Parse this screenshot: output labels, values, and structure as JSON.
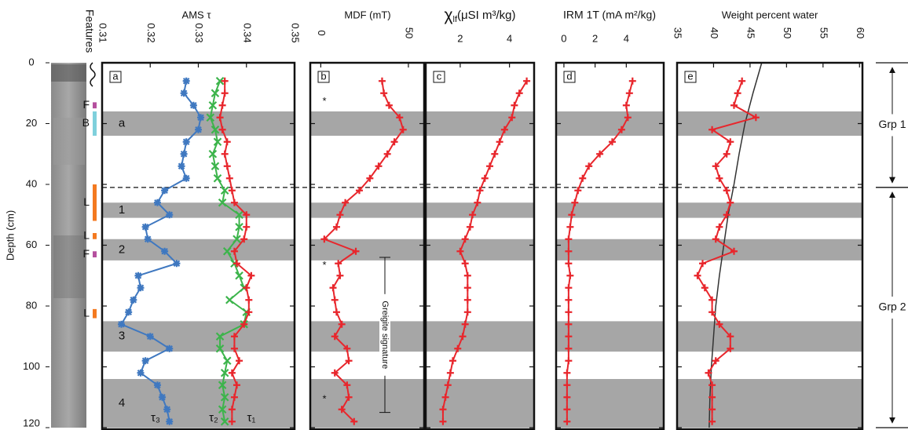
{
  "chart_data": [
    {
      "type": "line",
      "title": "AMS τ",
      "panel_label": "a",
      "ylabel": "Depth (cm)",
      "ylim": [
        0,
        120
      ],
      "yticks": [
        0,
        20,
        40,
        60,
        80,
        100,
        120
      ],
      "xlim": [
        0.31,
        0.35
      ],
      "xticks": [
        0.31,
        0.32,
        0.33,
        0.34,
        0.35
      ],
      "y": [
        6,
        10,
        14,
        18,
        22,
        26,
        30,
        34,
        38,
        42,
        46,
        50,
        54,
        58,
        62,
        66,
        70,
        74,
        78,
        82,
        86,
        90,
        94,
        98,
        102,
        106,
        110,
        114,
        118
      ],
      "series": [
        {
          "name": "τ₃",
          "color": "#3f78c0",
          "marker": "star",
          "values": [
            0.3275,
            0.327,
            0.329,
            0.3305,
            0.33,
            0.3275,
            0.327,
            0.3265,
            0.3275,
            0.323,
            0.3215,
            0.324,
            0.319,
            0.3195,
            0.323,
            0.3255,
            0.3175,
            0.318,
            0.3165,
            0.3155,
            0.314,
            0.32,
            0.324,
            0.319,
            0.318,
            0.3215,
            0.3225,
            0.3235,
            0.324
          ]
        },
        {
          "name": "τ₂",
          "color": "#3cb44b",
          "marker": "x",
          "values": [
            0.3345,
            0.3335,
            0.333,
            0.3325,
            0.3335,
            0.334,
            0.333,
            0.3335,
            0.334,
            0.3355,
            0.335,
            0.3385,
            0.3385,
            0.338,
            0.336,
            0.3375,
            0.3385,
            0.3395,
            0.3365,
            0.34,
            0.3395,
            0.3345,
            0.3345,
            0.336,
            0.3355,
            0.335,
            0.3355,
            0.335,
            0.3355
          ]
        },
        {
          "name": "τ₁",
          "color": "#e8262c",
          "marker": "plus",
          "values": [
            0.3355,
            0.3355,
            0.335,
            0.3345,
            0.335,
            0.336,
            0.3355,
            0.336,
            0.3365,
            0.337,
            0.3375,
            0.34,
            0.34,
            0.3395,
            0.3375,
            0.338,
            0.341,
            0.34,
            0.3405,
            0.3405,
            0.3395,
            0.3375,
            0.3375,
            0.3385,
            0.337,
            0.338,
            0.3375,
            0.337,
            0.337
          ]
        }
      ]
    },
    {
      "type": "line",
      "title": "MDF (mT)",
      "panel_label": "b",
      "xlim": [
        -6,
        59
      ],
      "xticks": [
        0,
        50
      ],
      "y": [
        6,
        10,
        14,
        18,
        22,
        26,
        30,
        34,
        38,
        42,
        46,
        50,
        54,
        58,
        62,
        66,
        70,
        74,
        78,
        82,
        86,
        90,
        94,
        98,
        102,
        106,
        110,
        114,
        118
      ],
      "series": [
        {
          "color": "#e8262c",
          "marker": "plus",
          "values": [
            35,
            36,
            39,
            45,
            47,
            42,
            38,
            33,
            28,
            22,
            14,
            11,
            9,
            2,
            20,
            10,
            11,
            7,
            8,
            9,
            12,
            8,
            15,
            16,
            8,
            15,
            16,
            12,
            19
          ]
        }
      ]
    },
    {
      "type": "line",
      "title": "χ",
      "title_sub": "lf",
      "title_unit": "(μSI m³/kg)",
      "panel_label": "c",
      "xlim": [
        0.6,
        5
      ],
      "xticks": [
        2,
        4
      ],
      "y": [
        6,
        10,
        14,
        18,
        22,
        26,
        30,
        34,
        38,
        42,
        46,
        50,
        54,
        58,
        62,
        66,
        70,
        74,
        78,
        82,
        86,
        90,
        94,
        98,
        102,
        106,
        110,
        114,
        118
      ],
      "series": [
        {
          "color": "#e8262c",
          "marker": "plus",
          "values": [
            4.7,
            4.4,
            4.2,
            4.1,
            3.8,
            3.6,
            3.4,
            3.2,
            3.0,
            2.8,
            2.7,
            2.5,
            2.4,
            2.2,
            2.0,
            2.2,
            2.3,
            2.3,
            2.3,
            2.3,
            2.2,
            2.1,
            1.9,
            1.7,
            1.6,
            1.5,
            1.4,
            1.3,
            1.3
          ]
        }
      ]
    },
    {
      "type": "line",
      "title": "IRM 1T (mA m²/kg)",
      "panel_label": "d",
      "xlim": [
        -0.5,
        6.4
      ],
      "xticks": [
        0,
        2,
        4
      ],
      "y": [
        6,
        10,
        14,
        18,
        22,
        26,
        30,
        34,
        38,
        42,
        46,
        50,
        54,
        58,
        62,
        66,
        70,
        74,
        78,
        82,
        86,
        90,
        94,
        98,
        102,
        106,
        110,
        114,
        118
      ],
      "series": [
        {
          "color": "#e8262c",
          "marker": "plus",
          "values": [
            4.4,
            4.2,
            4.0,
            4.1,
            3.7,
            3.1,
            2.3,
            1.6,
            1.2,
            0.9,
            0.7,
            0.5,
            0.4,
            0.3,
            0.3,
            0.3,
            0.4,
            0.3,
            0.3,
            0.3,
            0.3,
            0.3,
            0.3,
            0.3,
            0.2,
            0.2,
            0.2,
            0.2,
            0.2
          ]
        }
      ]
    },
    {
      "type": "line",
      "title": "Weight percent water",
      "panel_label": "e",
      "xlim": [
        35,
        60.4
      ],
      "xticks": [
        35,
        40,
        45,
        50,
        55,
        60
      ],
      "y": [
        6,
        10,
        14,
        18,
        22,
        26,
        30,
        34,
        38,
        42,
        46,
        50,
        54,
        58,
        62,
        66,
        70,
        74,
        78,
        82,
        86,
        90,
        94,
        98,
        102,
        106,
        110,
        114,
        118
      ],
      "series": [
        {
          "color": "#e8262c",
          "marker": "plus",
          "values": [
            43.9,
            43.3,
            42.8,
            45.8,
            39.8,
            42.3,
            41.8,
            40.3,
            40.8,
            41.8,
            42.3,
            41.8,
            40.8,
            40.3,
            42.8,
            38.5,
            37.8,
            38.8,
            39.8,
            39.8,
            40.8,
            42.3,
            42.3,
            40.3,
            39.3,
            39.8,
            39.8,
            39.8,
            39.8
          ]
        }
      ],
      "trend": {
        "color": "#333333",
        "y": [
          0,
          10,
          20,
          30,
          40,
          50,
          60,
          70,
          80,
          90,
          100,
          110,
          120
        ],
        "values": [
          46.6,
          45.4,
          44.3,
          43.5,
          42.8,
          42.0,
          41.4,
          40.8,
          40.3,
          40.0,
          39.7,
          39.5,
          39.4
        ]
      }
    }
  ],
  "zones": [
    {
      "label": "a",
      "depth": [
        16,
        24
      ]
    },
    {
      "label": "1",
      "depth": [
        46,
        51
      ]
    },
    {
      "label": "2",
      "depth": [
        58,
        65
      ]
    },
    {
      "label": "3",
      "depth": [
        85,
        95
      ]
    },
    {
      "label": "4",
      "depth": [
        104,
        120
      ]
    }
  ],
  "boundary_depth": 41,
  "features": {
    "title": "Features",
    "items": [
      {
        "label": "F",
        "depth": [
          13,
          15
        ],
        "color": "#b5509e"
      },
      {
        "label": "B",
        "depth": [
          16,
          24
        ],
        "color": "#7fd0dc"
      },
      {
        "label": "L",
        "depth": [
          40,
          52
        ],
        "color": "#f47a20"
      },
      {
        "label": "L",
        "depth": [
          56,
          58
        ],
        "color": "#f47a20"
      },
      {
        "label": "F",
        "depth": [
          62,
          64
        ],
        "color": "#b5509e"
      },
      {
        "label": "L",
        "depth": [
          81,
          84
        ],
        "color": "#f47a20"
      }
    ]
  },
  "greigite": {
    "label": "Greigite signature",
    "depth": [
      64,
      115
    ]
  },
  "asterisks": {
    "label": "*",
    "depths": [
      12,
      66,
      110
    ]
  },
  "groups": [
    {
      "label": "Grp 1",
      "depth": [
        0,
        41
      ]
    },
    {
      "label": "Grp 2",
      "depth": [
        41,
        120
      ]
    }
  ]
}
